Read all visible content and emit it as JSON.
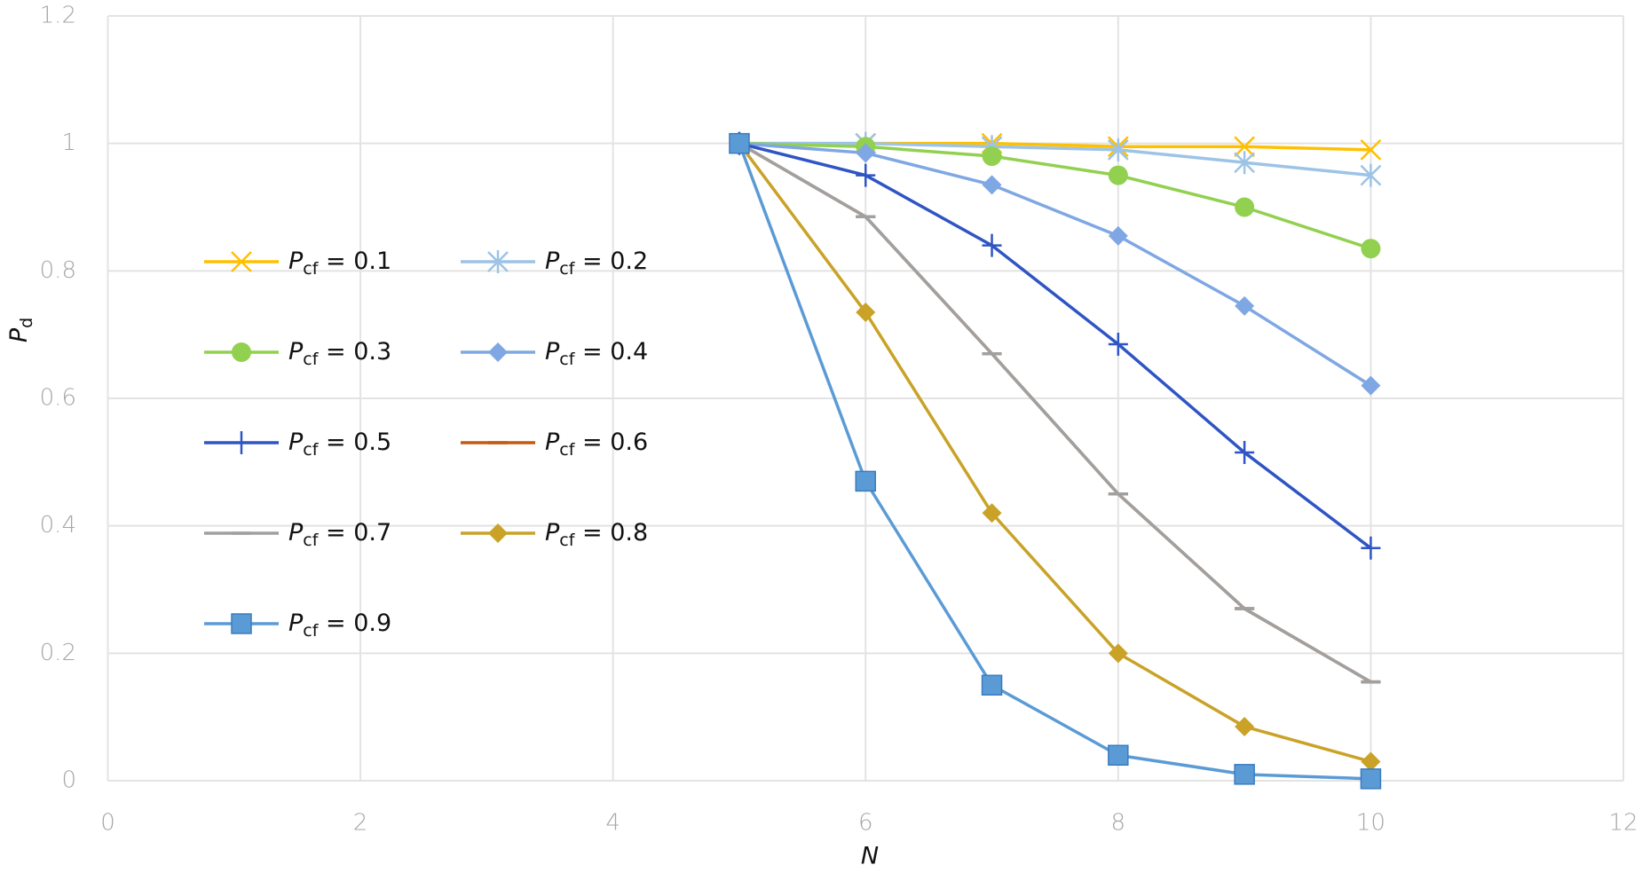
{
  "chart_data": {
    "type": "line",
    "x_label": "N",
    "y_label": "Pd",
    "x": [
      5,
      6,
      7,
      8,
      9,
      10
    ],
    "xlim": [
      0,
      12
    ],
    "xticks": [
      0,
      2,
      4,
      6,
      8,
      10,
      12
    ],
    "ylim": [
      0,
      1.2
    ],
    "yticks": [
      0,
      0.2,
      0.4,
      0.6,
      0.8,
      1,
      1.2
    ],
    "grid": true,
    "legend": "left",
    "series": [
      {
        "name": "Pcf = 0.1",
        "color": "#ffc000",
        "marker": "x",
        "values": [
          1,
          1,
          1,
          0.995,
          0.995,
          0.99
        ]
      },
      {
        "name": "Pcf = 0.2",
        "color": "#9dc3e6",
        "marker": "asterisk",
        "values": [
          1,
          1,
          0.995,
          0.99,
          0.97,
          0.95
        ]
      },
      {
        "name": "Pcf = 0.3",
        "color": "#92d050",
        "marker": "circle",
        "values": [
          1,
          0.995,
          0.98,
          0.95,
          0.9,
          0.835
        ]
      },
      {
        "name": "Pcf = 0.4",
        "color": "#7fa7e3",
        "marker": "diamond",
        "values": [
          1,
          0.985,
          0.935,
          0.855,
          0.745,
          0.62
        ]
      },
      {
        "name": "Pcf = 0.5",
        "color": "#2f55c4",
        "marker": "plus",
        "values": [
          1,
          0.95,
          0.84,
          0.685,
          0.515,
          0.365
        ]
      },
      {
        "name": "Pcf = 0.6",
        "color": "#c55a11",
        "marker": "dash",
        "values": [
          1,
          0.885,
          0.67,
          0.45,
          0.27,
          0.155
        ]
      },
      {
        "name": "Pcf = 0.7",
        "color": "#a0a0a0",
        "marker": "dash",
        "values": [
          1,
          0.885,
          0.67,
          0.45,
          0.27,
          0.155
        ]
      },
      {
        "name": "Pcf = 0.8",
        "color": "#c9a227",
        "marker": "diamond",
        "values": [
          1,
          0.735,
          0.42,
          0.2,
          0.085,
          0.03
        ]
      },
      {
        "name": "Pcf = 0.9",
        "color": "#5b9bd5",
        "marker": "square",
        "values": [
          1,
          0.47,
          0.15,
          0.04,
          0.01,
          0.003
        ]
      }
    ]
  }
}
